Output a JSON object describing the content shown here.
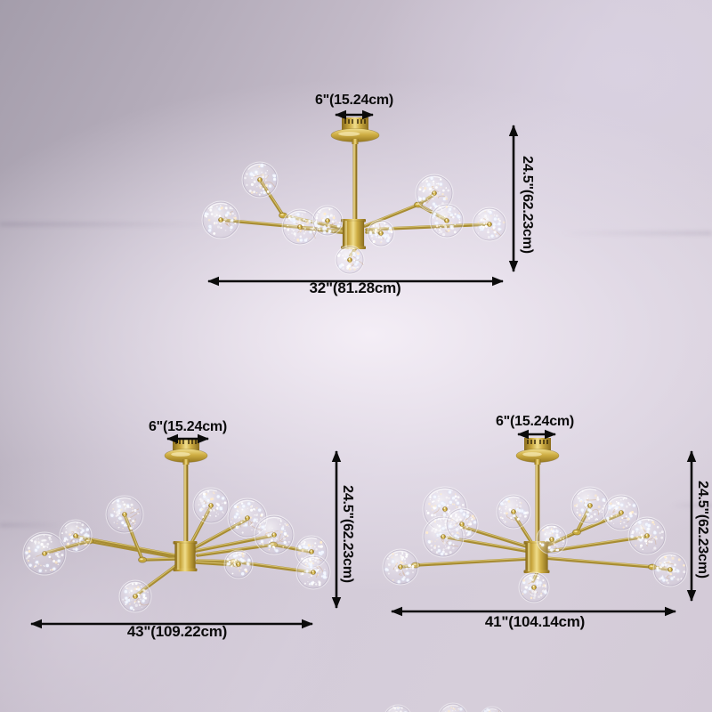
{
  "figures": [
    {
      "label_canopy": "6\"(15.24cm)",
      "label_height": "24.5\"(62.23cm)",
      "label_width": "32\"(81.28cm)"
    },
    {
      "label_canopy": "6\"(15.24cm)",
      "label_height": "24.5\"(62.23cm)",
      "label_width": "43\"(109.22cm)"
    },
    {
      "label_canopy": "6\"(15.24cm)",
      "label_height": "24.5\"(62.23cm)",
      "label_width": "41\"(104.14cm)"
    }
  ],
  "colors": {
    "annotation_ink": "#0b0b0b",
    "brass": "#b2943a",
    "background_light": "#e3dce6",
    "background_dark": "#a9a2ae"
  }
}
